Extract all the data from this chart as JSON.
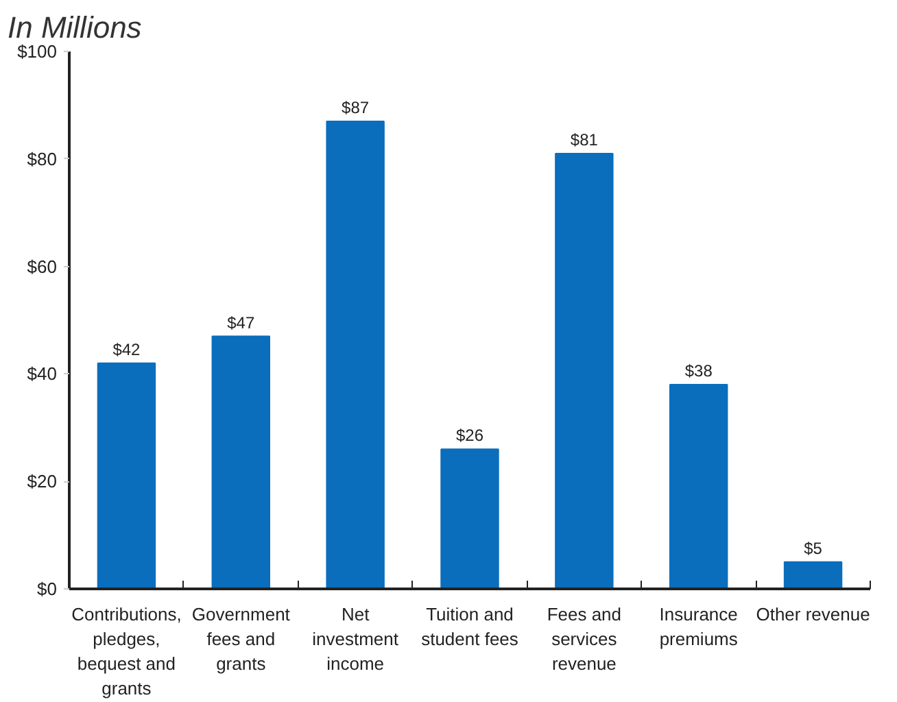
{
  "chart_data": {
    "type": "bar",
    "title": "In Millions",
    "categories": [
      "Contributions,\npledges,\nbequest and\ngrants",
      "Government\nfees and\ngrants",
      "Net\ninvestment\nincome",
      "Tuition and\nstudent fees",
      "Fees and\nservices\nrevenue",
      "Insurance\npremiums",
      "Other revenue"
    ],
    "values": [
      42,
      47,
      87,
      26,
      81,
      38,
      5
    ],
    "value_labels": [
      "$42",
      "$47",
      "$87",
      "$26",
      "$81",
      "$38",
      "$5"
    ],
    "color": "#0a6ebd",
    "ylim": [
      0,
      100
    ],
    "yticks": [
      {
        "value": 0,
        "label": "$0"
      },
      {
        "value": 20,
        "label": "$20"
      },
      {
        "value": 40,
        "label": "$40"
      },
      {
        "value": 60,
        "label": "$60"
      },
      {
        "value": 80,
        "label": "$80"
      },
      {
        "value": 100,
        "label": "$100"
      }
    ],
    "grid": false
  }
}
